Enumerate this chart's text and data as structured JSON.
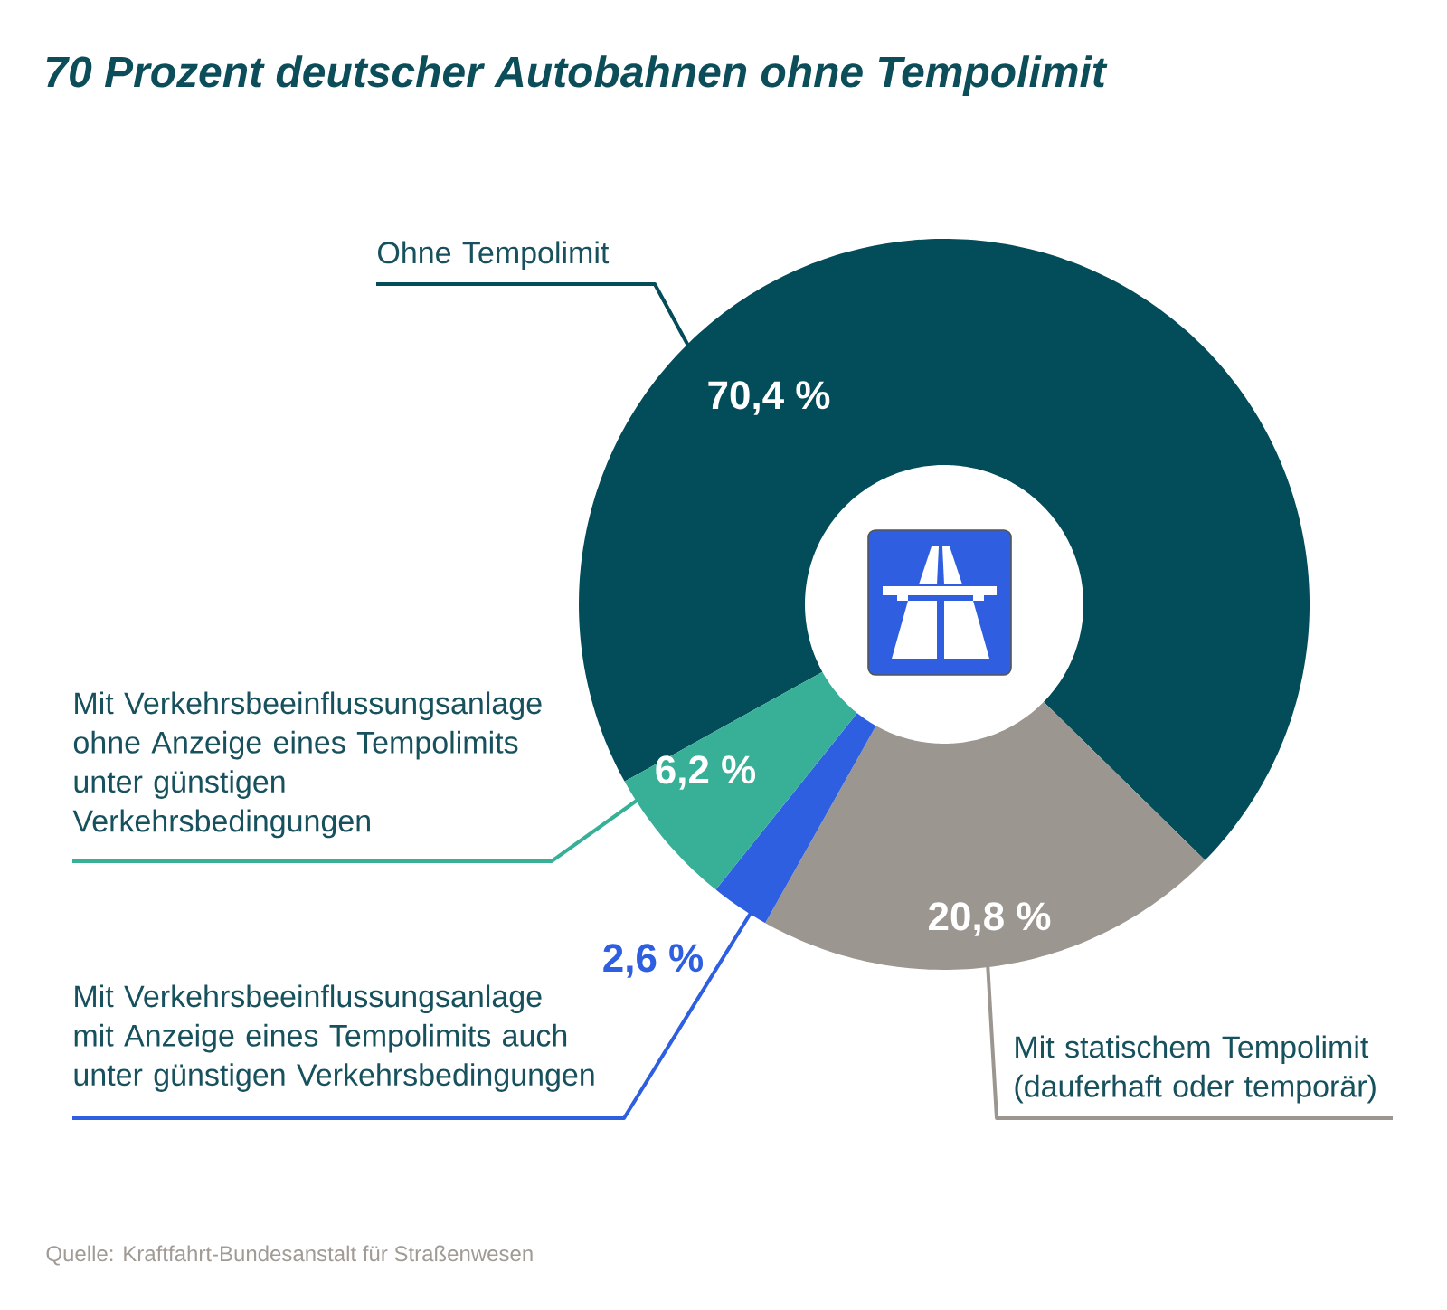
{
  "chart_data": {
    "type": "donut",
    "title": "70 Prozent deutscher Autobahnen ohne Tempolimit",
    "categories": [
      "Ohne Tempolimit",
      "Mit statischem Tempolimit\n(dauferhaft oder temporär)",
      "Mit Verkehrsbeeinflussungsanlage\nmit Anzeige eines Tempolimits auch\nunter günstigen Verkehrsbedingungen",
      "Mit Verkehrsbeeinflussungsanlage\nohne Anzeige eines Tempolimits\nunter günstigen\nVerkehrsbedingungen"
    ],
    "values": [
      70.4,
      20.8,
      2.6,
      6.2
    ],
    "colors": [
      "#034c59",
      "#9b9690",
      "#2e5fe0",
      "#38b097"
    ],
    "value_labels": [
      "70,4 %",
      "20,8 %",
      "2,6 %",
      "6,2 %"
    ],
    "annotations": [
      "Quelle: Kraftfahrt-Bundesanstalt für Straßenwesen"
    ]
  }
}
